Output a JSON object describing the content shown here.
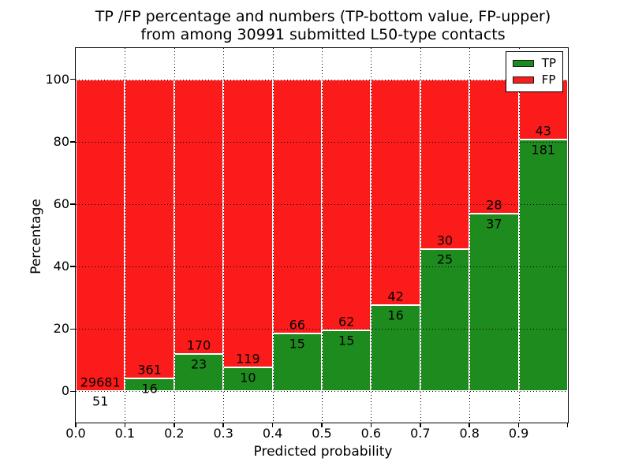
{
  "title": {
    "line1": "TP /FP percentage and numbers (TP-bottom value, FP-upper)",
    "line2": "from among 30991 submitted L50-type contacts"
  },
  "x_axis": {
    "label": "Predicted probability",
    "tick_labels": [
      "0.0",
      "0.1",
      "0.2",
      "0.3",
      "0.4",
      "0.5",
      "0.6",
      "0.7",
      "0.8",
      "0.9"
    ]
  },
  "y_axis": {
    "label": "Percentage",
    "tick_labels": [
      "0",
      "20",
      "40",
      "60",
      "80",
      "100"
    ]
  },
  "legend": {
    "items": [
      {
        "label": "TP",
        "color": "#1e8b1e"
      },
      {
        "label": "FP",
        "color": "#fb1b1b"
      }
    ]
  },
  "chart_data": {
    "type": "bar",
    "stacked": true,
    "normalized_to_percent": true,
    "title": "TP /FP percentage and numbers (TP-bottom value, FP-upper) from among 30991 submitted L50-type contacts",
    "xlabel": "Predicted probability",
    "ylabel": "Percentage",
    "total_contacts": 30991,
    "categories": [
      "0.0-0.1",
      "0.1-0.2",
      "0.2-0.3",
      "0.3-0.4",
      "0.4-0.5",
      "0.5-0.6",
      "0.6-0.7",
      "0.7-0.8",
      "0.8-0.9",
      "0.9-1.0"
    ],
    "series": [
      {
        "name": "TP",
        "color": "#1e8b1e",
        "counts": [
          51,
          16,
          23,
          10,
          15,
          15,
          16,
          25,
          37,
          181
        ],
        "percent": [
          0.17,
          4.24,
          11.92,
          7.75,
          18.52,
          19.48,
          27.59,
          45.45,
          56.92,
          80.8
        ]
      },
      {
        "name": "FP",
        "color": "#fb1b1b",
        "counts": [
          29681,
          361,
          170,
          119,
          66,
          62,
          42,
          30,
          28,
          43
        ],
        "percent": [
          99.83,
          95.76,
          88.08,
          92.25,
          81.48,
          80.52,
          72.41,
          54.55,
          43.08,
          19.2
        ]
      }
    ],
    "xlim": [
      0.0,
      1.0
    ],
    "ylim": [
      -10,
      110
    ],
    "x_gridlines": [
      0.1,
      0.2,
      0.3,
      0.4,
      0.5,
      0.6,
      0.7,
      0.8,
      0.9
    ],
    "y_gridlines": [
      0,
      20,
      40,
      60,
      80,
      100
    ],
    "grid": "dotted",
    "legend_position": "upper right"
  }
}
